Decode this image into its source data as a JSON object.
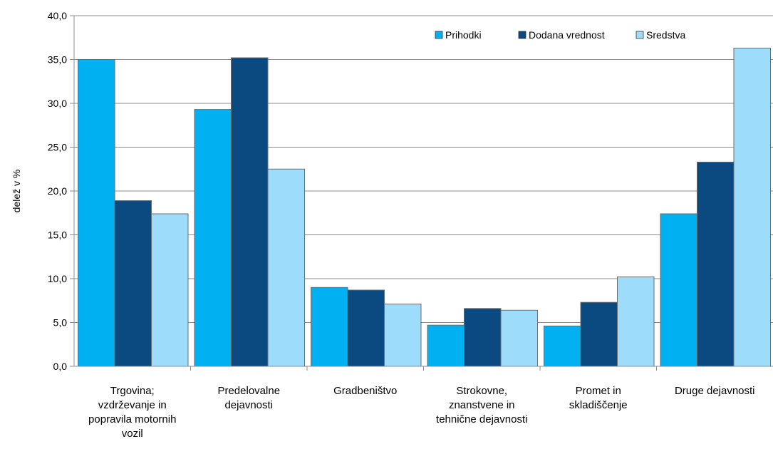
{
  "chart_data": {
    "type": "bar",
    "ylabel": "delež v %",
    "xlabel": "",
    "ylim": [
      0,
      40
    ],
    "yticks": [
      "0,0",
      "5,0",
      "10,0",
      "15,0",
      "20,0",
      "25,0",
      "30,0",
      "35,0",
      "40,0"
    ],
    "grid": true,
    "legend_position": "top-right",
    "categories": [
      [
        "Trgovina;",
        "vzdrževanje in",
        "popravila motornih",
        "vozil"
      ],
      [
        "Predelovalne",
        "dejavnosti"
      ],
      [
        "Gradbeništvo"
      ],
      [
        "Strokovne,",
        "znanstvene in",
        "tehnične dejavnosti"
      ],
      [
        "Promet in",
        "skladiščenje"
      ],
      [
        "Druge dejavnosti"
      ]
    ],
    "series": [
      {
        "name": "Prihodki",
        "color": "#00b0f0",
        "values": [
          35.0,
          29.3,
          9.0,
          4.7,
          4.6,
          17.4
        ]
      },
      {
        "name": "Dodana vrednost",
        "color": "#0b4a80",
        "values": [
          18.9,
          35.2,
          8.7,
          6.6,
          7.3,
          23.3
        ]
      },
      {
        "name": "Sredstva",
        "color": "#9ddcfb",
        "values": [
          17.4,
          22.5,
          7.1,
          6.4,
          10.2,
          36.3
        ]
      }
    ]
  }
}
